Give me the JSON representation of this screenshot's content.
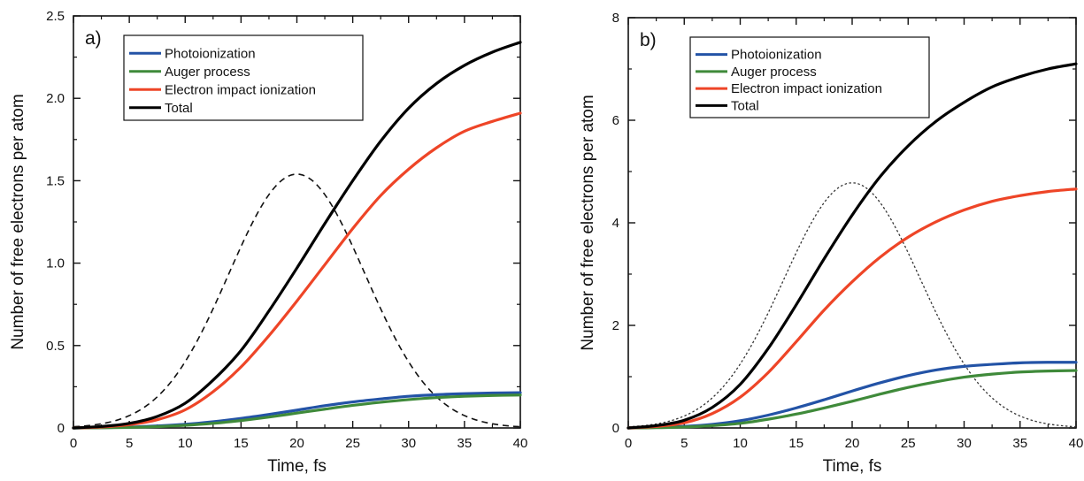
{
  "chart_data": [
    {
      "type": "line",
      "panel_label": "a)",
      "xlabel": "Time, fs",
      "ylabel": "Number of free electrons per atom",
      "xlim": [
        0,
        40
      ],
      "ylim": [
        0,
        2.5
      ],
      "x_ticks": [
        "0",
        "5",
        "10",
        "15",
        "20",
        "25",
        "30",
        "35",
        "40"
      ],
      "y_ticks": [
        "0",
        "0.5",
        "1.0",
        "1.5",
        "2.0",
        "2.5"
      ],
      "grid": false,
      "legend_position": "top-left",
      "x": [
        0,
        2.5,
        5,
        7.5,
        10,
        12.5,
        15,
        17.5,
        20,
        22.5,
        25,
        27.5,
        30,
        32.5,
        35,
        37.5,
        40
      ],
      "series": [
        {
          "name": "Photoionization",
          "color": "#2353a6",
          "width": 3.2,
          "values": [
            0,
            0.002,
            0.005,
            0.012,
            0.022,
            0.038,
            0.058,
            0.082,
            0.108,
            0.135,
            0.158,
            0.176,
            0.192,
            0.202,
            0.208,
            0.212,
            0.214
          ]
        },
        {
          "name": "Auger process",
          "color": "#3f8a3a",
          "width": 3.2,
          "values": [
            0,
            0.001,
            0.003,
            0.008,
            0.016,
            0.028,
            0.045,
            0.066,
            0.09,
            0.114,
            0.137,
            0.156,
            0.172,
            0.184,
            0.192,
            0.197,
            0.2
          ]
        },
        {
          "name": "Electron impact ionization",
          "color": "#ee4527",
          "width": 3.2,
          "values": [
            0,
            0.006,
            0.02,
            0.05,
            0.11,
            0.22,
            0.37,
            0.56,
            0.77,
            0.99,
            1.21,
            1.41,
            1.57,
            1.7,
            1.8,
            1.86,
            1.91
          ]
        },
        {
          "name": "Total",
          "color": "#000000",
          "width": 3.2,
          "values": [
            0,
            0.009,
            0.028,
            0.07,
            0.15,
            0.29,
            0.47,
            0.71,
            0.97,
            1.24,
            1.5,
            1.74,
            1.94,
            2.09,
            2.2,
            2.28,
            2.34
          ]
        }
      ],
      "pulse": {
        "style": "dashed",
        "color": "#111111",
        "peak_time": 20,
        "peak_value": 1.54,
        "sigma": 6.1
      }
    },
    {
      "type": "line",
      "panel_label": "b)",
      "xlabel": "Time, fs",
      "ylabel": "Number of free electrons per atom",
      "xlim": [
        0,
        40
      ],
      "ylim": [
        0,
        8
      ],
      "x_ticks": [
        "0",
        "5",
        "10",
        "15",
        "20",
        "25",
        "30",
        "35",
        "40"
      ],
      "y_ticks": [
        "0",
        "2",
        "4",
        "6",
        "8"
      ],
      "grid": false,
      "legend_position": "top-left",
      "x": [
        0,
        2.5,
        5,
        7.5,
        10,
        12.5,
        15,
        17.5,
        20,
        22.5,
        25,
        27.5,
        30,
        32.5,
        35,
        37.5,
        40
      ],
      "series": [
        {
          "name": "Photoionization",
          "color": "#2353a6",
          "width": 3.2,
          "values": [
            0,
            0.01,
            0.03,
            0.07,
            0.14,
            0.25,
            0.39,
            0.55,
            0.72,
            0.88,
            1.02,
            1.13,
            1.2,
            1.24,
            1.27,
            1.28,
            1.28
          ]
        },
        {
          "name": "Auger process",
          "color": "#3f8a3a",
          "width": 3.2,
          "values": [
            0,
            0.005,
            0.018,
            0.045,
            0.09,
            0.17,
            0.27,
            0.39,
            0.52,
            0.66,
            0.79,
            0.9,
            0.99,
            1.05,
            1.09,
            1.11,
            1.12
          ]
        },
        {
          "name": "Electron impact ionization",
          "color": "#ee4527",
          "width": 3.2,
          "values": [
            0,
            0.03,
            0.1,
            0.28,
            0.6,
            1.08,
            1.68,
            2.3,
            2.85,
            3.33,
            3.72,
            4.02,
            4.25,
            4.42,
            4.53,
            4.61,
            4.66
          ]
        },
        {
          "name": "Total",
          "color": "#000000",
          "width": 3.2,
          "values": [
            0,
            0.045,
            0.15,
            0.4,
            0.85,
            1.55,
            2.4,
            3.3,
            4.15,
            4.9,
            5.5,
            5.98,
            6.35,
            6.65,
            6.85,
            7.0,
            7.1
          ]
        }
      ],
      "pulse": {
        "style": "dotted",
        "color": "#333333",
        "peak_time": 20,
        "peak_value": 4.78,
        "sigma": 6.1
      }
    }
  ]
}
